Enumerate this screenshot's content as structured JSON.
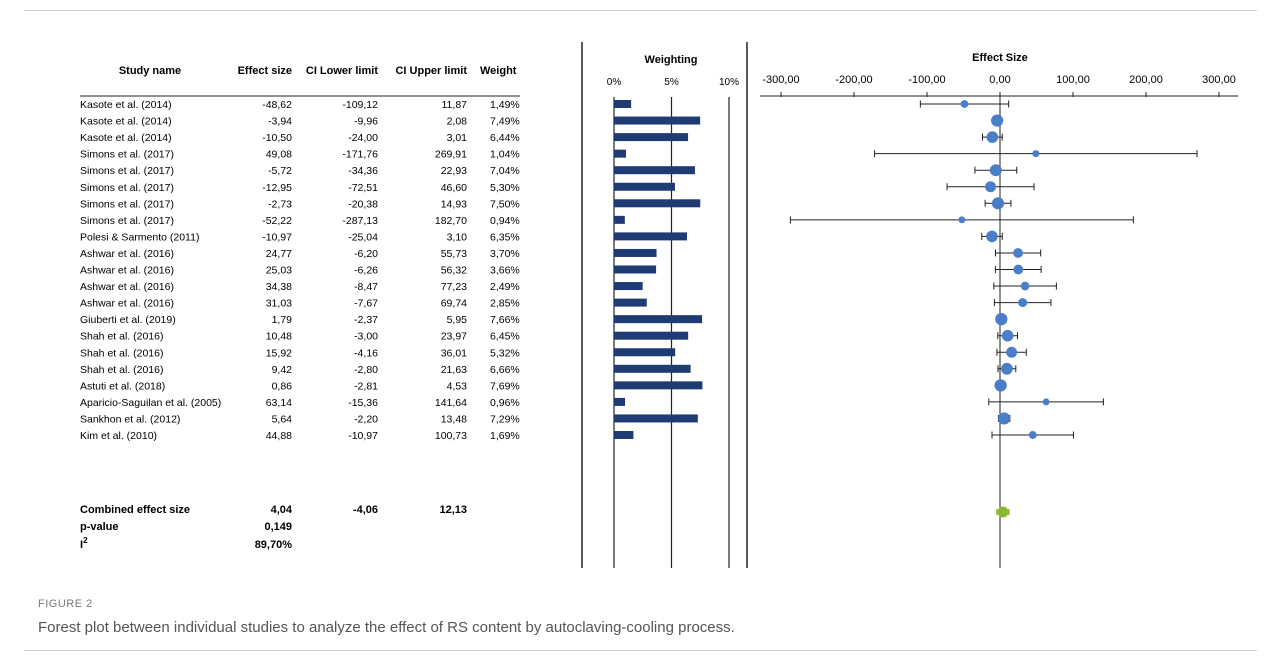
{
  "figure_label": "FIGURE 2",
  "caption": "Forest plot between individual studies to analyze the effect of RS content by autoclaving-cooling process.",
  "table": {
    "headers": [
      "Study name",
      "Effect size",
      "CI Lower limit",
      "CI Upper limit",
      "Weight"
    ]
  },
  "combined": {
    "label": "Combined effect size",
    "effect": "4,04",
    "lower": "-4,06",
    "upper": "12,13",
    "pvalue_label": "p-value",
    "pvalue": "0,149",
    "i2_label": "I",
    "i2_sup": "2",
    "i2": "89,70%"
  },
  "colors": {
    "bar": "#1f3b73",
    "point": "#4a7ec8",
    "combined": "#8ab832",
    "axis": "#222222"
  },
  "chart_data": [
    {
      "type": "bar",
      "title": "Weighting",
      "orientation": "horizontal",
      "xlim": [
        0,
        10
      ],
      "tick_labels": [
        "0%",
        "5%",
        "10%"
      ],
      "ticks": [
        0,
        5,
        10
      ],
      "values": [
        1.49,
        7.49,
        6.44,
        1.04,
        7.04,
        5.3,
        7.5,
        0.94,
        6.35,
        3.7,
        3.66,
        2.49,
        2.85,
        7.66,
        6.45,
        5.32,
        6.66,
        7.69,
        0.96,
        7.29,
        1.69
      ]
    },
    {
      "type": "scatter",
      "title": "Effect Size",
      "xlim": [
        -300,
        300
      ],
      "ticks": [
        -300,
        -200,
        -100,
        0,
        100,
        200,
        300
      ],
      "tick_labels": [
        "-300,00",
        "-200,00",
        "-100,00",
        "0,00",
        "100,00",
        "200,00",
        "300,00"
      ],
      "categories": [
        "Kasote et al. (2014)",
        "Kasote et al. (2014)",
        "Kasote et al. (2014)",
        "Simons et al. (2017)",
        "Simons et al. (2017)",
        "Simons et al. (2017)",
        "Simons et al. (2017)",
        "Simons et al. (2017)",
        "Polesi & Sarmento (2011)",
        "Ashwar et al. (2016)",
        "Ashwar et al. (2016)",
        "Ashwar et al. (2016)",
        "Ashwar et al. (2016)",
        "Giuberti et al. (2019)",
        "Shah et al. (2016)",
        "Shah et al. (2016)",
        "Shah et al. (2016)",
        "Astuti et al. (2018)",
        "Aparicio-Saguilan et al. (2005)",
        "Sankhon et al. (2012)",
        "Kim et al. (2010)"
      ],
      "effect": [
        -48.62,
        -3.94,
        -10.5,
        49.08,
        -5.72,
        -12.95,
        -2.73,
        -52.22,
        -10.97,
        24.77,
        25.03,
        34.38,
        31.03,
        1.79,
        10.48,
        15.92,
        9.42,
        0.86,
        63.14,
        5.64,
        44.88
      ],
      "lower": [
        -109.12,
        -9.96,
        -24.0,
        -171.76,
        -34.36,
        -72.51,
        -20.38,
        -287.13,
        -25.04,
        -6.2,
        -6.26,
        -8.47,
        -7.67,
        -2.37,
        -3.0,
        -4.16,
        -2.8,
        -2.81,
        -15.36,
        -2.2,
        -10.97
      ],
      "upper": [
        11.87,
        2.08,
        3.01,
        269.91,
        22.93,
        46.6,
        14.93,
        182.7,
        3.1,
        55.73,
        56.32,
        77.23,
        69.74,
        5.95,
        23.97,
        36.01,
        21.63,
        4.53,
        141.64,
        13.48,
        100.73
      ],
      "effect_labels": [
        "-48,62",
        "-3,94",
        "-10,50",
        "49,08",
        "-5,72",
        "-12,95",
        "-2,73",
        "-52,22",
        "-10,97",
        "24,77",
        "25,03",
        "34,38",
        "31,03",
        "1,79",
        "10,48",
        "15,92",
        "9,42",
        "0,86",
        "63,14",
        "5,64",
        "44,88"
      ],
      "lower_labels": [
        "-109,12",
        "-9,96",
        "-24,00",
        "-171,76",
        "-34,36",
        "-72,51",
        "-20,38",
        "-287,13",
        "-25,04",
        "-6,20",
        "-6,26",
        "-8,47",
        "-7,67",
        "-2,37",
        "-3,00",
        "-4,16",
        "-2,80",
        "-2,81",
        "-15,36",
        "-2,20",
        "-10,97"
      ],
      "upper_labels": [
        "11,87",
        "2,08",
        "3,01",
        "269,91",
        "22,93",
        "46,60",
        "14,93",
        "182,70",
        "3,10",
        "55,73",
        "56,32",
        "77,23",
        "69,74",
        "5,95",
        "23,97",
        "36,01",
        "21,63",
        "4,53",
        "141,64",
        "13,48",
        "100,73"
      ],
      "weight_labels": [
        "1,49%",
        "7,49%",
        "6,44%",
        "1,04%",
        "7,04%",
        "5,30%",
        "7,50%",
        "0,94%",
        "6,35%",
        "3,70%",
        "3,66%",
        "2,49%",
        "2,85%",
        "7,66%",
        "6,45%",
        "5,32%",
        "6,66%",
        "7,69%",
        "0,96%",
        "7,29%",
        "1,69%"
      ],
      "combined": {
        "effect": 4.04,
        "lower": -4.06,
        "upper": 12.13
      }
    }
  ]
}
